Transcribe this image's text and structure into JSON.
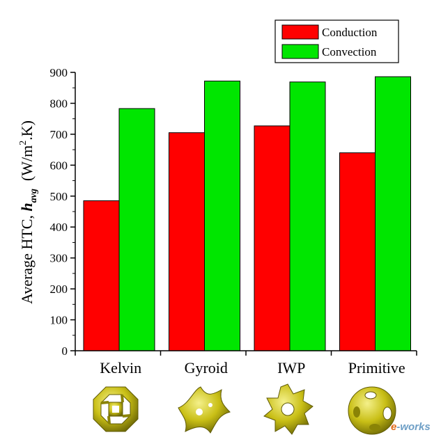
{
  "chart_data": {
    "type": "bar",
    "categories": [
      "Kelvin",
      "Gyroid",
      "IWP",
      "Primitive"
    ],
    "series": [
      {
        "name": "Conduction",
        "color": "#ff0000",
        "values": [
          485,
          705,
          727,
          640
        ]
      },
      {
        "name": "Convection",
        "color": "#00e600",
        "values": [
          783,
          872,
          869,
          886
        ]
      }
    ],
    "ylabel": {
      "prefix": "Average HTC, ",
      "symbol": "h",
      "subscript": "avg",
      "unit_open": "  (W/m",
      "unit_sup": "2",
      "unit_close": ".K)"
    },
    "ylim": [
      0,
      900
    ],
    "yticks": [
      0,
      100,
      200,
      300,
      400,
      500,
      600,
      700,
      800,
      900
    ],
    "legend_position": "top-right",
    "grid": false,
    "structure_icons": [
      "kelvin-cell-icon",
      "gyroid-cell-icon",
      "iwp-cell-icon",
      "primitive-cell-icon"
    ]
  },
  "watermark": {
    "prefix": "e",
    "rest": "-works"
  }
}
